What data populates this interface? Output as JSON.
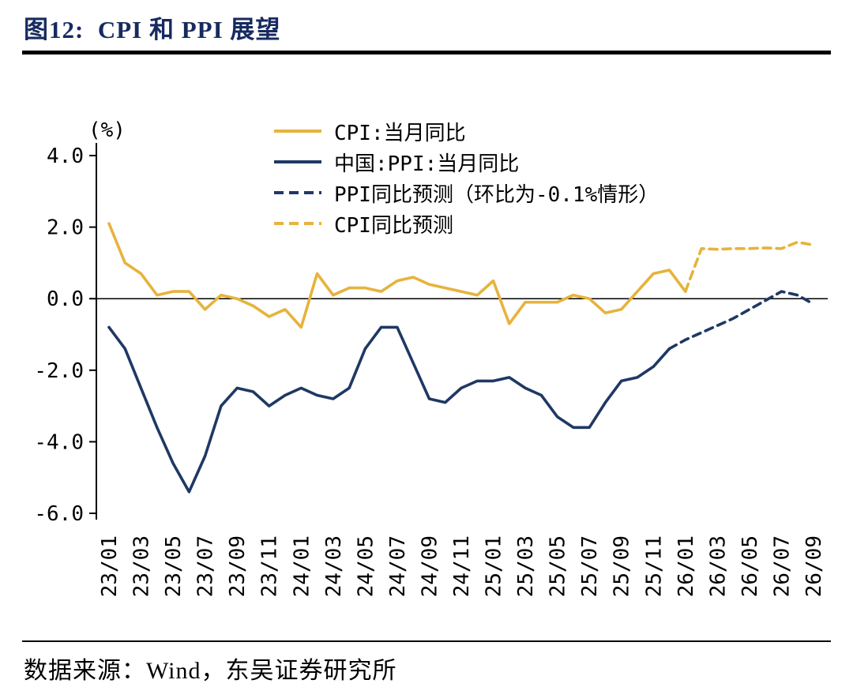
{
  "header": {
    "title": "图12:  CPI 和 PPI 展望"
  },
  "footer": {
    "source": "数据来源：Wind，东吴证券研究所"
  },
  "colors": {
    "gold": "#E6B33C",
    "navy": "#1F3864",
    "title_navy": "#172a60",
    "axis": "#000000"
  },
  "chart_data": {
    "type": "line",
    "title": "图12: CPI 和 PPI 展望",
    "ylabel": "(%)",
    "ylim": [
      -6,
      4
    ],
    "y_ticks": [
      4,
      2,
      0,
      -2,
      -4,
      -6
    ],
    "x_tick_every": 2,
    "grid": false,
    "legend_position": "top-center",
    "x": [
      "23/01",
      "23/02",
      "23/03",
      "23/04",
      "23/05",
      "23/06",
      "23/07",
      "23/08",
      "23/09",
      "23/10",
      "23/11",
      "23/12",
      "24/01",
      "24/02",
      "24/03",
      "24/04",
      "24/05",
      "24/06",
      "24/07",
      "24/08",
      "24/09",
      "24/10",
      "24/11",
      "24/12",
      "25/01",
      "25/02",
      "25/03",
      "25/04",
      "25/05",
      "25/06",
      "25/07",
      "25/08",
      "25/09",
      "25/10",
      "25/11",
      "25/12",
      "26/01",
      "26/02",
      "26/03",
      "26/04",
      "26/05",
      "26/06",
      "26/07",
      "26/08",
      "26/09"
    ],
    "series": [
      {
        "id": "cpi-actual",
        "label": "CPI:当月同比",
        "color": "#E6B33C",
        "dashed": false,
        "values": [
          2.1,
          1.0,
          0.7,
          0.1,
          0.2,
          0.2,
          -0.3,
          0.1,
          0.0,
          -0.2,
          -0.5,
          -0.3,
          -0.8,
          0.7,
          0.1,
          0.3,
          0.3,
          0.2,
          0.5,
          0.6,
          0.4,
          0.3,
          0.2,
          0.1,
          0.5,
          -0.7,
          -0.1,
          -0.1,
          -0.1,
          0.1,
          0.0,
          -0.4,
          -0.3,
          0.2,
          0.7,
          0.8,
          0.2,
          null,
          null,
          null,
          null,
          null,
          null,
          null,
          null
        ]
      },
      {
        "id": "ppi-actual",
        "label": "中国:PPI:当月同比",
        "color": "#1F3864",
        "dashed": false,
        "values": [
          -0.8,
          -1.4,
          -2.5,
          -3.6,
          -4.6,
          -5.4,
          -4.4,
          -3.0,
          -2.5,
          -2.6,
          -3.0,
          -2.7,
          -2.5,
          -2.7,
          -2.8,
          -2.5,
          -1.4,
          -0.8,
          -0.8,
          -1.8,
          -2.8,
          -2.9,
          -2.5,
          -2.3,
          -2.3,
          -2.2,
          -2.5,
          -2.7,
          -3.3,
          -3.6,
          -3.6,
          -2.9,
          -2.3,
          -2.2,
          -1.9,
          -1.4,
          null,
          null,
          null,
          null,
          null,
          null,
          null,
          null,
          null
        ]
      },
      {
        "id": "ppi-forecast",
        "label": "PPI同比预测（环比为-0.1%情形）",
        "color": "#1F3864",
        "dashed": true,
        "values": [
          null,
          null,
          null,
          null,
          null,
          null,
          null,
          null,
          null,
          null,
          null,
          null,
          null,
          null,
          null,
          null,
          null,
          null,
          null,
          null,
          null,
          null,
          null,
          null,
          null,
          null,
          null,
          null,
          null,
          null,
          null,
          null,
          null,
          null,
          null,
          -1.4,
          -1.15,
          -0.95,
          -0.75,
          -0.55,
          -0.3,
          -0.05,
          0.2,
          0.1,
          -0.15
        ]
      },
      {
        "id": "cpi-forecast",
        "label": "CPI同比预测",
        "color": "#E6B33C",
        "dashed": true,
        "values": [
          null,
          null,
          null,
          null,
          null,
          null,
          null,
          null,
          null,
          null,
          null,
          null,
          null,
          null,
          null,
          null,
          null,
          null,
          null,
          null,
          null,
          null,
          null,
          null,
          null,
          null,
          null,
          null,
          null,
          null,
          null,
          null,
          null,
          null,
          null,
          null,
          0.2,
          1.4,
          1.38,
          1.4,
          1.4,
          1.42,
          1.4,
          1.58,
          1.5
        ]
      }
    ]
  }
}
